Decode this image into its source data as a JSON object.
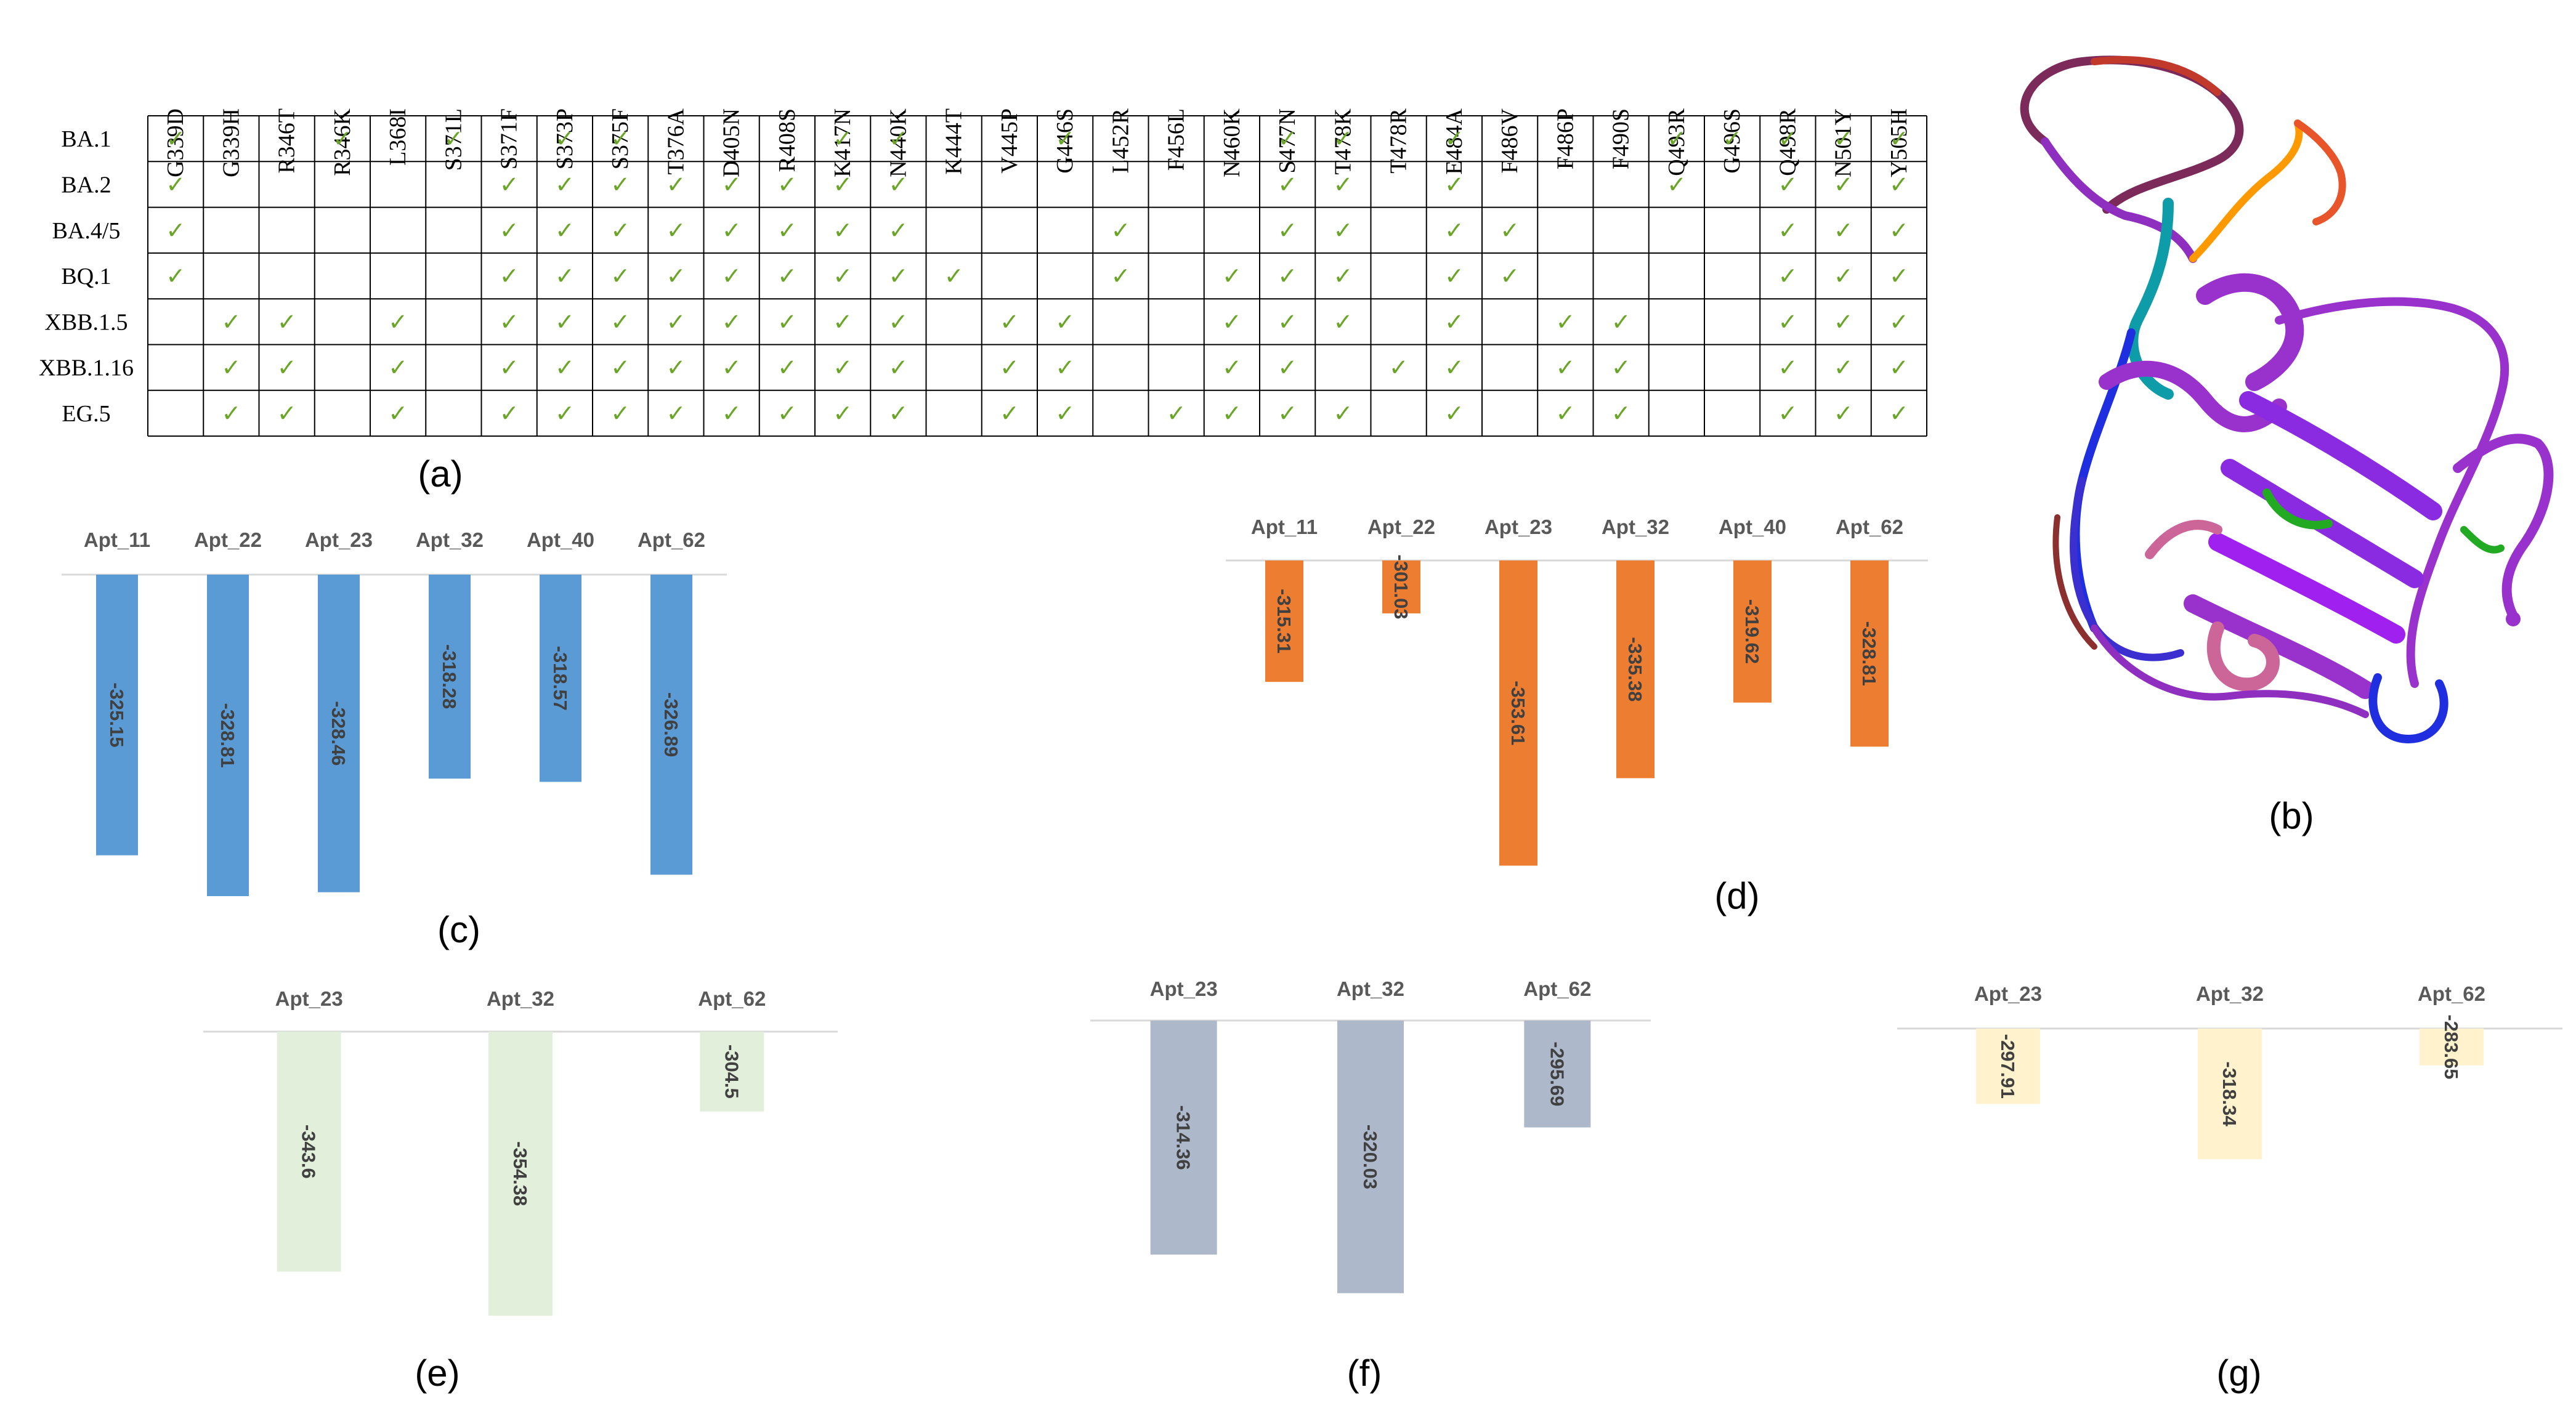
{
  "mutation_table": {
    "panel_label": "(a)",
    "columns": [
      "G339D",
      "G339H",
      "R346T",
      "R346K",
      "L368I",
      "S371L",
      "S371F",
      "S373P",
      "S375F",
      "T376A",
      "D405N",
      "R408S",
      "K417N",
      "N440K",
      "K444T",
      "V445P",
      "G446S",
      "L452R",
      "F456L",
      "N460K",
      "S477N",
      "T478K",
      "T478R",
      "E484A",
      "F486V",
      "F486P",
      "F490S",
      "Q493R",
      "G496S",
      "Q498R",
      "N501Y",
      "Y505H"
    ],
    "rows": [
      {
        "label": "BA.1",
        "checks": [
          1,
          0,
          0,
          1,
          0,
          1,
          0,
          1,
          1,
          0,
          0,
          0,
          1,
          1,
          0,
          0,
          1,
          0,
          0,
          0,
          1,
          1,
          0,
          1,
          0,
          0,
          0,
          1,
          1,
          1,
          1,
          1
        ]
      },
      {
        "label": "BA.2",
        "checks": [
          1,
          0,
          0,
          0,
          0,
          0,
          1,
          1,
          1,
          1,
          1,
          1,
          1,
          1,
          0,
          0,
          0,
          0,
          0,
          0,
          1,
          1,
          0,
          1,
          0,
          0,
          0,
          1,
          0,
          1,
          1,
          1
        ]
      },
      {
        "label": "BA.4/5",
        "checks": [
          1,
          0,
          0,
          0,
          0,
          0,
          1,
          1,
          1,
          1,
          1,
          1,
          1,
          1,
          0,
          0,
          0,
          1,
          0,
          0,
          1,
          1,
          0,
          1,
          1,
          0,
          0,
          0,
          0,
          1,
          1,
          1
        ]
      },
      {
        "label": "BQ.1",
        "checks": [
          1,
          0,
          0,
          0,
          0,
          0,
          1,
          1,
          1,
          1,
          1,
          1,
          1,
          1,
          1,
          0,
          0,
          1,
          0,
          1,
          1,
          1,
          0,
          1,
          1,
          0,
          0,
          0,
          0,
          1,
          1,
          1
        ]
      },
      {
        "label": "XBB.1.5",
        "checks": [
          0,
          1,
          1,
          0,
          1,
          0,
          1,
          1,
          1,
          1,
          1,
          1,
          1,
          1,
          0,
          1,
          1,
          0,
          0,
          1,
          1,
          1,
          0,
          1,
          0,
          1,
          1,
          0,
          0,
          1,
          1,
          1
        ]
      },
      {
        "label": "XBB.1.16",
        "checks": [
          0,
          1,
          1,
          0,
          1,
          0,
          1,
          1,
          1,
          1,
          1,
          1,
          1,
          1,
          0,
          1,
          1,
          0,
          0,
          1,
          1,
          0,
          1,
          1,
          0,
          1,
          1,
          0,
          0,
          1,
          1,
          1
        ]
      },
      {
        "label": "EG.5",
        "checks": [
          0,
          1,
          1,
          0,
          1,
          0,
          1,
          1,
          1,
          1,
          1,
          1,
          1,
          1,
          0,
          1,
          1,
          0,
          1,
          1,
          1,
          1,
          0,
          1,
          0,
          1,
          1,
          0,
          0,
          1,
          1,
          1
        ]
      }
    ],
    "check_glyph": "✓",
    "check_color": "#6aa528"
  },
  "structure": {
    "panel_label": "(b)"
  },
  "chart_data": [
    {
      "panel": "(c)",
      "type": "bar",
      "orientation": "downward",
      "color": "#5b9bd5",
      "value_min": -300,
      "categories": [
        "Apt_11",
        "Apt_22",
        "Apt_23",
        "Apt_32",
        "Apt_40",
        "Apt_62"
      ],
      "values": [
        -325.15,
        -328.81,
        -328.46,
        -318.28,
        -318.57,
        -326.89
      ],
      "labels": [
        "-325.15",
        "-328.81",
        "-328.46",
        "-318.28",
        "-318.57",
        "-326.89"
      ]
    },
    {
      "panel": "(d)",
      "type": "bar",
      "orientation": "downward",
      "color": "#ed7d31",
      "value_min": -290,
      "categories": [
        "Apt_11",
        "Apt_22",
        "Apt_23",
        "Apt_32",
        "Apt_40",
        "Apt_62"
      ],
      "values": [
        -315.31,
        -301.03,
        -353.61,
        -335.38,
        -319.62,
        -328.81
      ],
      "labels": [
        "-315.31",
        "-301.03",
        "-353.61",
        "-335.38",
        "-319.62",
        "-328.81"
      ]
    },
    {
      "panel": "(e)",
      "type": "bar",
      "orientation": "downward",
      "color": "#e2efda",
      "value_min": -285,
      "categories": [
        "Apt_23",
        "Apt_32",
        "Apt_62"
      ],
      "values": [
        -343.6,
        -354.38,
        -304.5
      ],
      "labels": [
        "-343.6",
        "-354.38",
        "-304.5"
      ]
    },
    {
      "panel": "(f)",
      "type": "bar",
      "orientation": "downward",
      "color": "#adb9ca",
      "value_min": -280,
      "categories": [
        "Apt_23",
        "Apt_32",
        "Apt_62"
      ],
      "values": [
        -314.36,
        -320.03,
        -295.69
      ],
      "labels": [
        "-314.36",
        "-320.03",
        "-295.69"
      ]
    },
    {
      "panel": "(g)",
      "type": "bar",
      "orientation": "downward",
      "color": "#fff2cc",
      "value_min": -270,
      "categories": [
        "Apt_23",
        "Apt_32",
        "Apt_62"
      ],
      "values": [
        -297.91,
        -318.34,
        -283.65
      ],
      "labels": [
        "-297.91",
        "-318.34",
        "-283.65"
      ]
    }
  ]
}
